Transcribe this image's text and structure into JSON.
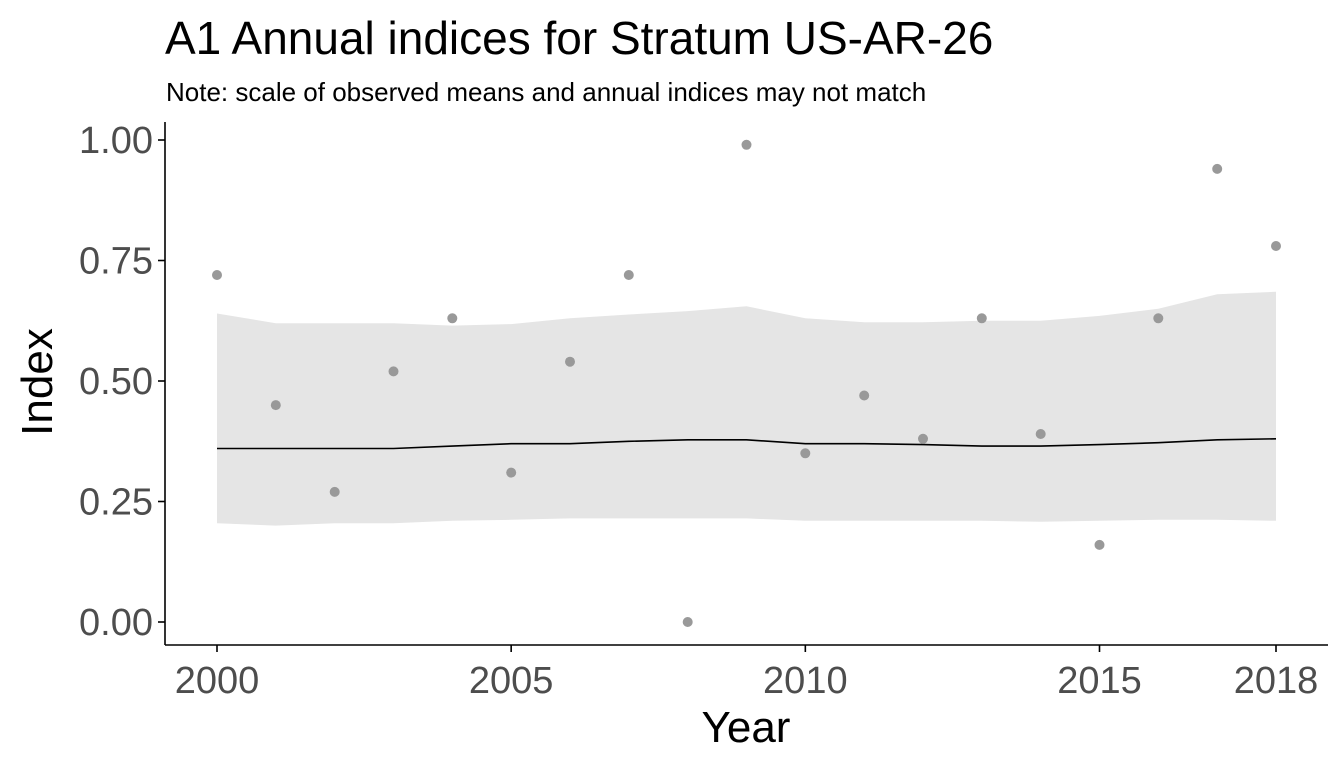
{
  "chart_data": {
    "type": "scatter",
    "title": "A1 Annual indices for Stratum US-AR-26",
    "subtitle": "Note: scale of observed means and annual indices may not match",
    "xlabel": "Year",
    "ylabel": "Index",
    "xlim": [
      2000,
      2018
    ],
    "ylim": [
      0,
      1
    ],
    "x_ticks": [
      2000,
      2005,
      2010,
      2015,
      2018
    ],
    "x_tick_labels": [
      "2000",
      "2005",
      "2010",
      "2015",
      "2018"
    ],
    "y_ticks": [
      0,
      0.25,
      0.5,
      0.75,
      1
    ],
    "y_tick_labels": [
      "0.00",
      "0.25",
      "0.50",
      "0.75",
      "1.00"
    ],
    "grid": false,
    "legend": "none",
    "colors": {
      "points": "#999999",
      "ribbon": "#e5e5e5",
      "line": "#000000",
      "axis": "#000000",
      "tick_text": "#4d4d4d"
    },
    "observed_means": {
      "x": [
        2000,
        2001,
        2002,
        2003,
        2004,
        2005,
        2006,
        2007,
        2008,
        2009,
        2010,
        2011,
        2012,
        2013,
        2014,
        2015,
        2016,
        2017,
        2018
      ],
      "y": [
        0.72,
        0.45,
        0.27,
        0.52,
        0.63,
        0.31,
        0.54,
        0.72,
        0.0,
        0.99,
        0.35,
        0.47,
        0.38,
        0.63,
        0.39,
        0.16,
        0.63,
        0.94,
        0.78
      ]
    },
    "annual_index": {
      "x": [
        2000,
        2001,
        2002,
        2003,
        2004,
        2005,
        2006,
        2007,
        2008,
        2009,
        2010,
        2011,
        2012,
        2013,
        2014,
        2015,
        2016,
        2017,
        2018
      ],
      "y": [
        0.36,
        0.36,
        0.36,
        0.36,
        0.365,
        0.37,
        0.37,
        0.375,
        0.378,
        0.378,
        0.37,
        0.37,
        0.368,
        0.365,
        0.365,
        0.368,
        0.372,
        0.378,
        0.38
      ],
      "lower": [
        0.205,
        0.2,
        0.205,
        0.205,
        0.21,
        0.212,
        0.215,
        0.215,
        0.215,
        0.215,
        0.21,
        0.21,
        0.21,
        0.21,
        0.208,
        0.21,
        0.212,
        0.212,
        0.21
      ],
      "upper": [
        0.64,
        0.62,
        0.62,
        0.62,
        0.615,
        0.618,
        0.63,
        0.638,
        0.645,
        0.655,
        0.63,
        0.622,
        0.622,
        0.625,
        0.625,
        0.635,
        0.65,
        0.68,
        0.685
      ]
    }
  }
}
